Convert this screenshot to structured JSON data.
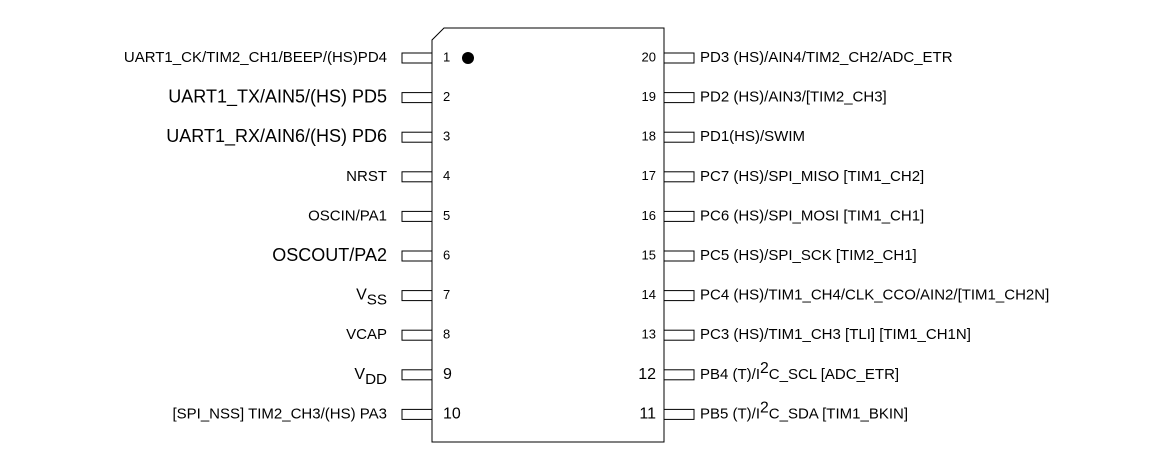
{
  "left_pins": [
    {
      "number": "1",
      "label": "UART1_CK/TIM2_CH1/BEEP/(HS)PD4"
    },
    {
      "number": "2",
      "label": "UART1_TX/AIN5/(HS) PD5"
    },
    {
      "number": "3",
      "label": "UART1_RX/AIN6/(HS) PD6"
    },
    {
      "number": "4",
      "label": "NRST"
    },
    {
      "number": "5",
      "label": "OSCIN/PA1"
    },
    {
      "number": "6",
      "label": "OSCOUT/PA2"
    },
    {
      "number": "7",
      "label": [
        {
          "text": "V"
        },
        {
          "text": "SS",
          "style": "sub"
        }
      ]
    },
    {
      "number": "8",
      "label": "VCAP"
    },
    {
      "number": "9",
      "label": [
        {
          "text": "V"
        },
        {
          "text": "DD",
          "style": "sub"
        }
      ]
    },
    {
      "number": "10",
      "label": "[SPI_NSS] TIM2_CH3/(HS) PA3"
    }
  ],
  "right_pins": [
    {
      "number": "20",
      "label": "PD3 (HS)/AIN4/TIM2_CH2/ADC_ETR"
    },
    {
      "number": "19",
      "label": "PD2 (HS)/AIN3/[TIM2_CH3]"
    },
    {
      "number": "18",
      "label": "PD1(HS)/SWIM"
    },
    {
      "number": "17",
      "label": "PC7 (HS)/SPI_MISO [TIM1_CH2]"
    },
    {
      "number": "16",
      "label": "PC6 (HS)/SPI_MOSI [TIM1_CH1]"
    },
    {
      "number": "15",
      "label": "PC5 (HS)/SPI_SCK [TIM2_CH1]"
    },
    {
      "number": "14",
      "label": "PC4 (HS)/TIM1_CH4/CLK_CCO/AIN2/[TIM1_CH2N]"
    },
    {
      "number": "13",
      "label": "PC3 (HS)/TIM1_CH3 [TLI] [TIM1_CH1N]"
    },
    {
      "number": "12",
      "label": [
        {
          "text": "PB4 (T)/I"
        },
        {
          "text": "2",
          "style": "sup"
        },
        {
          "text": "C_SCL [ADC_ETR]"
        }
      ]
    },
    {
      "number": "11",
      "label": [
        {
          "text": "PB5 (T)/I"
        },
        {
          "text": "2",
          "style": "sup"
        },
        {
          "text": "C_SDA [TIM1_BKIN]"
        }
      ]
    }
  ]
}
